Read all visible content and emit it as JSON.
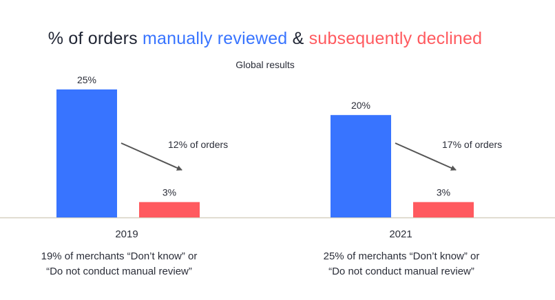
{
  "header": {
    "title_prefix": "% of orders ",
    "title_highlight1": "manually reviewed",
    "title_joiner": " & ",
    "title_highlight2": "subsequently declined",
    "subtitle": "Global results"
  },
  "colors": {
    "reviewed": "#3874ff",
    "declined": "#ff5a5f",
    "title_text": "#1f2433",
    "axis": "#d6d0c0",
    "arrow": "#555555"
  },
  "chart_data": {
    "type": "bar",
    "title": "% of orders manually reviewed & subsequently declined",
    "subtitle": "Global results",
    "categories": [
      "2019",
      "2021"
    ],
    "series": [
      {
        "name": "manually reviewed",
        "values": [
          25,
          20
        ],
        "labels": [
          "25%",
          "20%"
        ]
      },
      {
        "name": "subsequently declined",
        "values": [
          3,
          3
        ],
        "labels": [
          "3%",
          "3%"
        ]
      }
    ],
    "annotations": [
      "12% of orders",
      "17% of orders"
    ],
    "ylim": [
      0,
      25
    ],
    "xlabel": "",
    "ylabel": "",
    "grid": false
  },
  "footnotes": [
    {
      "line1": "19% of merchants “Don’t know” or",
      "line2": "“Do not conduct manual review”"
    },
    {
      "line1": "25% of merchants “Don’t know” or",
      "line2": "“Do not conduct manual review”"
    }
  ]
}
